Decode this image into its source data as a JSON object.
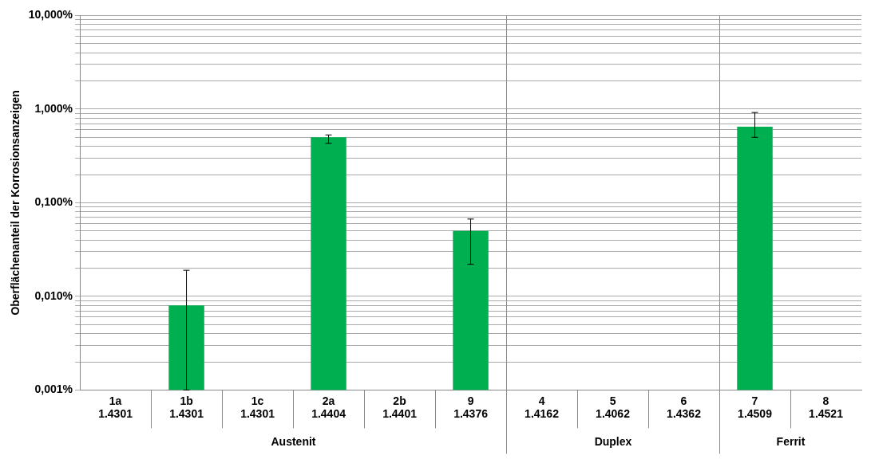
{
  "chart_data": {
    "type": "bar",
    "ylabel": "Oberflächenanteil der Korrosionsanzeigen",
    "categories": [
      "1a 1.4301",
      "1b 1.4301",
      "1c 1.4301",
      "2a 1.4404",
      "2b 1.4401",
      "9 1.4376",
      "4 1.4162",
      "5 1.4062",
      "6 1.4362",
      "7 1.4509",
      "8 1.4521"
    ],
    "values": [
      null,
      0.008,
      null,
      0.5,
      null,
      0.05,
      null,
      null,
      null,
      0.65,
      null
    ],
    "errors": [
      null,
      [
        0.001,
        0.019
      ],
      null,
      [
        0.43,
        0.53
      ],
      null,
      [
        0.022,
        0.067
      ],
      null,
      null,
      null,
      [
        0.5,
        0.92
      ],
      null
    ],
    "color": "#00b050",
    "log": "y",
    "ylim": [
      0.001,
      10
    ],
    "yticks": [
      {
        "value": 0.001,
        "label": "0,001%"
      },
      {
        "value": 0.002,
        "label": null
      },
      {
        "value": 0.003,
        "label": null
      },
      {
        "value": 0.004,
        "label": null
      },
      {
        "value": 0.005,
        "label": null
      },
      {
        "value": 0.006,
        "label": null
      },
      {
        "value": 0.007,
        "label": null
      },
      {
        "value": 0.008,
        "label": null
      },
      {
        "value": 0.009,
        "label": null
      },
      {
        "value": 0.01,
        "label": "0,010%"
      },
      {
        "value": 0.02,
        "label": null
      },
      {
        "value": 0.03,
        "label": null
      },
      {
        "value": 0.04,
        "label": null
      },
      {
        "value": 0.05,
        "label": null
      },
      {
        "value": 0.06,
        "label": null
      },
      {
        "value": 0.07,
        "label": null
      },
      {
        "value": 0.08,
        "label": null
      },
      {
        "value": 0.09,
        "label": null
      },
      {
        "value": 0.1,
        "label": "0,100%"
      },
      {
        "value": 0.2,
        "label": null
      },
      {
        "value": 0.3,
        "label": null
      },
      {
        "value": 0.4,
        "label": null
      },
      {
        "value": 0.5,
        "label": null
      },
      {
        "value": 0.6,
        "label": null
      },
      {
        "value": 0.7,
        "label": null
      },
      {
        "value": 0.8,
        "label": null
      },
      {
        "value": 0.9,
        "label": null
      },
      {
        "value": 1,
        "label": "1,000%"
      },
      {
        "value": 2,
        "label": null
      },
      {
        "value": 3,
        "label": null
      },
      {
        "value": 4,
        "label": null
      },
      {
        "value": 5,
        "label": null
      },
      {
        "value": 6,
        "label": null
      },
      {
        "value": 7,
        "label": null
      },
      {
        "value": 8,
        "label": null
      },
      {
        "value": 9,
        "label": null
      },
      {
        "value": 10,
        "label": "10,000%"
      }
    ],
    "grid": "y",
    "legend": false,
    "annotations": [
      "Austenit",
      "Duplex",
      "Ferrit"
    ]
  }
}
